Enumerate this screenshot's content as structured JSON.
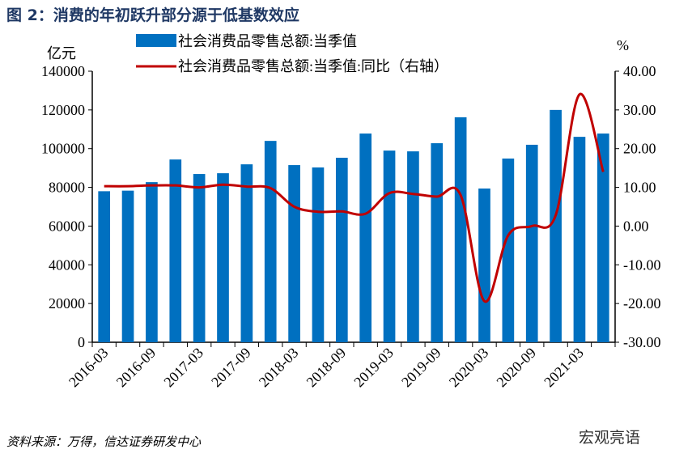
{
  "title": "图 2：消费的年初跃升部分源于低基数效应",
  "source": "资料来源：万得，信达证券研发中心",
  "watermark": "宏观亮语",
  "colors": {
    "bar": "#0070c0",
    "line": "#c00000",
    "title": "#1f3864"
  },
  "chart_data": {
    "type": "bar+line",
    "title": "图 2：消费的年初跃升部分源于低基数效应",
    "left_axis_unit": "亿元",
    "right_axis_unit": "%",
    "left_ylim": [
      0,
      140000
    ],
    "right_ylim": [
      -30,
      40
    ],
    "left_ticks": [
      "0",
      "20000",
      "40000",
      "60000",
      "80000",
      "100000",
      "120000",
      "140000"
    ],
    "right_ticks": [
      "-30.00",
      "-20.00",
      "-10.00",
      "0.00",
      "10.00",
      "20.00",
      "30.00",
      "40.00"
    ],
    "legend_position": "top",
    "categories": [
      "2016-03",
      "2016-06",
      "2016-09",
      "2016-12",
      "2017-03",
      "2017-06",
      "2017-09",
      "2017-12",
      "2018-03",
      "2018-06",
      "2018-09",
      "2018-12",
      "2019-03",
      "2019-06",
      "2019-09",
      "2019-12",
      "2020-03",
      "2020-06",
      "2020-09",
      "2020-12",
      "2021-03",
      "2021-06"
    ],
    "x_tick_labels": [
      "2016-03",
      "2016-09",
      "2017-03",
      "2017-09",
      "2018-03",
      "2018-09",
      "2019-03",
      "2019-09",
      "2020-03",
      "2020-09",
      "2021-03"
    ],
    "series": [
      {
        "name": "社会消费品零售总额:当季值",
        "type": "bar",
        "axis": "left",
        "values": [
          78000,
          78300,
          82700,
          94400,
          86900,
          87300,
          91900,
          104000,
          91500,
          90300,
          95300,
          107800,
          99000,
          98600,
          102800,
          116200,
          79400,
          94900,
          102000,
          120000,
          106100,
          107800
        ]
      },
      {
        "name": "社会消费品零售总额:当季值:同比（右轴）",
        "type": "line",
        "axis": "right",
        "values": [
          10.3,
          10.3,
          10.5,
          10.5,
          10.0,
          10.7,
          10.2,
          9.8,
          5.0,
          3.7,
          3.8,
          3.2,
          8.5,
          8.3,
          7.6,
          8.0,
          -19.4,
          -2.4,
          0.0,
          2.8,
          34.0,
          14.0
        ]
      }
    ]
  }
}
